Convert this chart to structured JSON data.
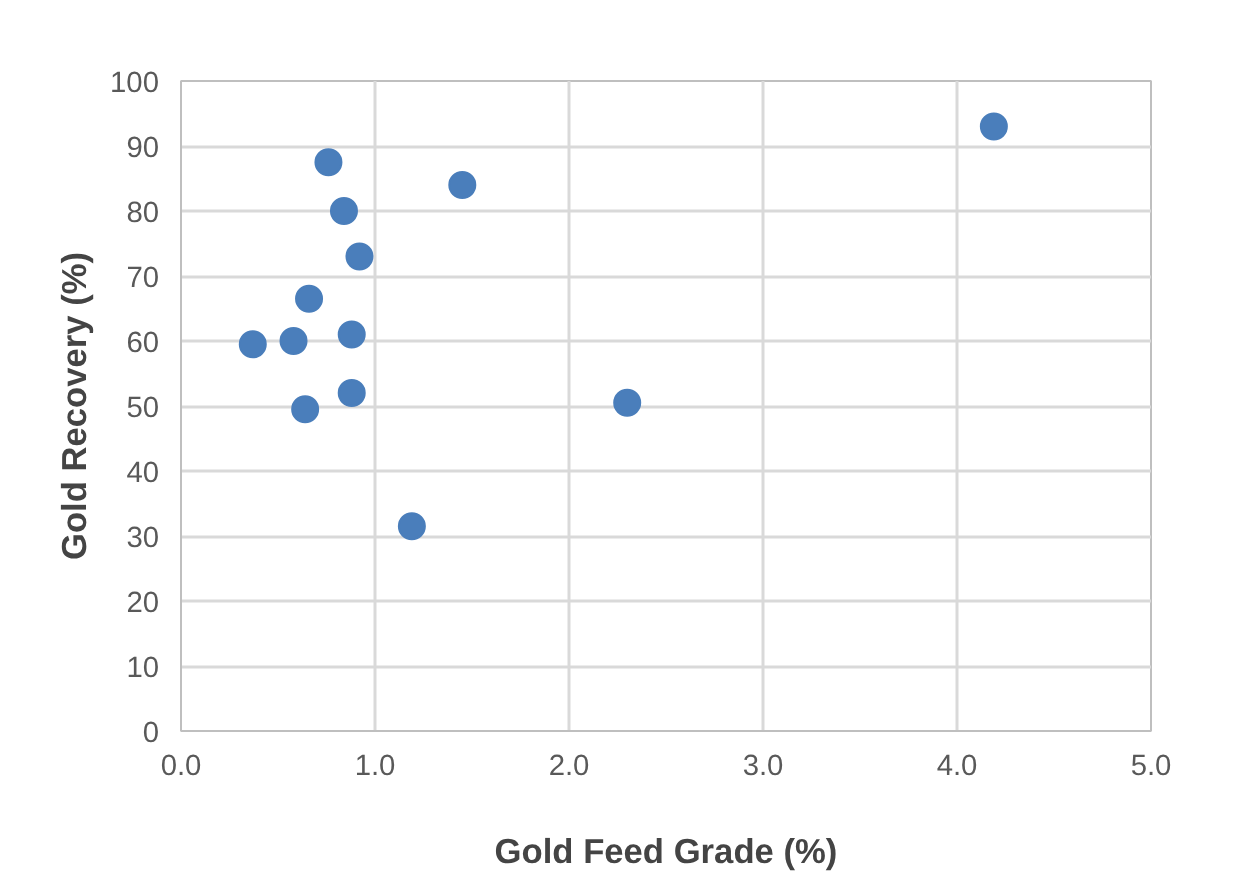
{
  "chart_data": {
    "type": "scatter",
    "xlabel": "Gold Feed Grade (%)",
    "ylabel": "Gold Recovery (%)",
    "x": [
      4.19,
      1.45,
      0.76,
      0.84,
      0.92,
      0.66,
      0.88,
      0.58,
      0.37,
      0.64,
      0.88,
      2.3,
      1.19
    ],
    "series": [
      {
        "color": "#4a7ebb",
        "values": [
          93,
          84,
          87.5,
          80,
          73,
          66.5,
          61,
          60,
          59.5,
          49.5,
          52,
          50.5,
          31.5
        ]
      }
    ],
    "xlim": [
      0,
      5
    ],
    "xticks": [
      {
        "value": 0,
        "label": "0.0"
      },
      {
        "value": 1,
        "label": "1.0"
      },
      {
        "value": 2,
        "label": "2.0"
      },
      {
        "value": 3,
        "label": "3.0"
      },
      {
        "value": 4,
        "label": "4.0"
      },
      {
        "value": 5,
        "label": "5.0"
      }
    ],
    "ylim": [
      0,
      100
    ],
    "yticks": [
      0,
      10,
      20,
      30,
      40,
      50,
      60,
      70,
      80,
      90,
      100
    ],
    "grid": true,
    "marker": "circle"
  }
}
